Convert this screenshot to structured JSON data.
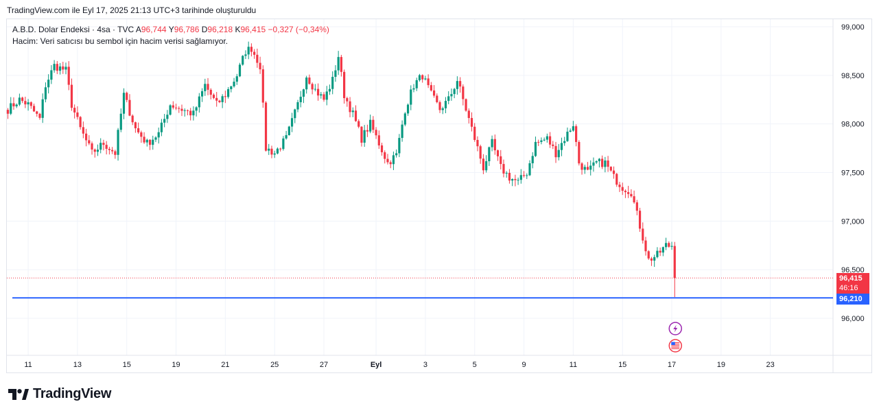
{
  "header": {
    "created_text": "TradingView.com ile Eyl 17, 2025 21:13 UTC+3 tarihinde oluşturuldu"
  },
  "legend": {
    "symbol": "A.B.D. Dolar Endeksi · 4sa · TVC",
    "open_key": "A",
    "open_val": "96,744",
    "high_key": "Y",
    "high_val": "96,786",
    "low_key": "D",
    "low_val": "96,218",
    "close_key": "K",
    "close_val": "96,415",
    "change": "−0,327 (−0,34%)",
    "volume_note": "Hacim: Veri satıcısı bu sembol için hacim verisi sağlamıyor."
  },
  "badges": {
    "last_price": "96,415",
    "countdown": "46:16",
    "hline_price": "96,210"
  },
  "footer": {
    "brand": "TradingView"
  },
  "colors": {
    "up": "#089981",
    "down": "#f23645",
    "hline": "#2962ff",
    "grid": "#f0f3fa"
  },
  "chart_data": {
    "type": "candlestick",
    "title": "A.B.D. Dolar Endeksi · 4sa · TVC",
    "ylim": [
      95.55,
      99.06
    ],
    "y_ticks": [
      "99,000",
      "98,500",
      "98,000",
      "97,500",
      "97,000",
      "96,500",
      "96,000"
    ],
    "y_tick_values": [
      99.0,
      98.5,
      98.0,
      97.5,
      97.0,
      96.5,
      96.0
    ],
    "x_ticks": [
      {
        "label": "11",
        "index": 7
      },
      {
        "label": "13",
        "index": 24
      },
      {
        "label": "15",
        "index": 41
      },
      {
        "label": "19",
        "index": 58
      },
      {
        "label": "21",
        "index": 75
      },
      {
        "label": "25",
        "index": 92
      },
      {
        "label": "27",
        "index": 109
      },
      {
        "label": "Eyl",
        "index": 127
      },
      {
        "label": "3",
        "index": 144
      },
      {
        "label": "5",
        "index": 161
      },
      {
        "label": "9",
        "index": 178
      },
      {
        "label": "11",
        "index": 195
      },
      {
        "label": "15",
        "index": 212
      },
      {
        "label": "17",
        "index": 229
      },
      {
        "label": "19",
        "index": 246
      },
      {
        "label": "23",
        "index": 263
      }
    ],
    "horizontal_line": 96.21,
    "last_price": 96.415,
    "anchors": [
      [
        0,
        98.15
      ],
      [
        4,
        98.25
      ],
      [
        7,
        98.2
      ],
      [
        11,
        98.05
      ],
      [
        13,
        98.4
      ],
      [
        16,
        98.6
      ],
      [
        20,
        98.55
      ],
      [
        22,
        98.2
      ],
      [
        25,
        97.95
      ],
      [
        29,
        97.7
      ],
      [
        33,
        97.8
      ],
      [
        37,
        97.7
      ],
      [
        40,
        98.3
      ],
      [
        44,
        97.95
      ],
      [
        48,
        97.8
      ],
      [
        52,
        97.9
      ],
      [
        56,
        98.2
      ],
      [
        60,
        98.15
      ],
      [
        64,
        98.1
      ],
      [
        68,
        98.4
      ],
      [
        72,
        98.2
      ],
      [
        75,
        98.3
      ],
      [
        79,
        98.5
      ],
      [
        82,
        98.75
      ],
      [
        84,
        98.78
      ],
      [
        87,
        98.6
      ],
      [
        89,
        97.75
      ],
      [
        92,
        97.7
      ],
      [
        96,
        97.85
      ],
      [
        100,
        98.2
      ],
      [
        103,
        98.5
      ],
      [
        106,
        98.35
      ],
      [
        109,
        98.25
      ],
      [
        112,
        98.45
      ],
      [
        114,
        98.7
      ],
      [
        116,
        98.3
      ],
      [
        119,
        98.1
      ],
      [
        122,
        97.85
      ],
      [
        125,
        98.0
      ],
      [
        128,
        97.8
      ],
      [
        131,
        97.6
      ],
      [
        134,
        97.68
      ],
      [
        137,
        98.15
      ],
      [
        140,
        98.4
      ],
      [
        143,
        98.5
      ],
      [
        146,
        98.3
      ],
      [
        149,
        98.15
      ],
      [
        152,
        98.25
      ],
      [
        155,
        98.45
      ],
      [
        158,
        98.15
      ],
      [
        161,
        97.85
      ],
      [
        164,
        97.55
      ],
      [
        167,
        97.8
      ],
      [
        170,
        97.55
      ],
      [
        173,
        97.45
      ],
      [
        176,
        97.4
      ],
      [
        179,
        97.5
      ],
      [
        182,
        97.8
      ],
      [
        186,
        97.85
      ],
      [
        189,
        97.7
      ],
      [
        192,
        97.85
      ],
      [
        195,
        98.0
      ],
      [
        197,
        97.6
      ],
      [
        200,
        97.5
      ],
      [
        203,
        97.6
      ],
      [
        206,
        97.6
      ],
      [
        209,
        97.45
      ],
      [
        212,
        97.35
      ],
      [
        215,
        97.3
      ],
      [
        218,
        96.95
      ],
      [
        221,
        96.6
      ],
      [
        224,
        96.65
      ],
      [
        227,
        96.75
      ],
      [
        229,
        96.74
      ],
      [
        230,
        96.415
      ]
    ],
    "last_candle": {
      "open": 96.744,
      "high": 96.786,
      "low": 96.218,
      "close": 96.415
    }
  }
}
